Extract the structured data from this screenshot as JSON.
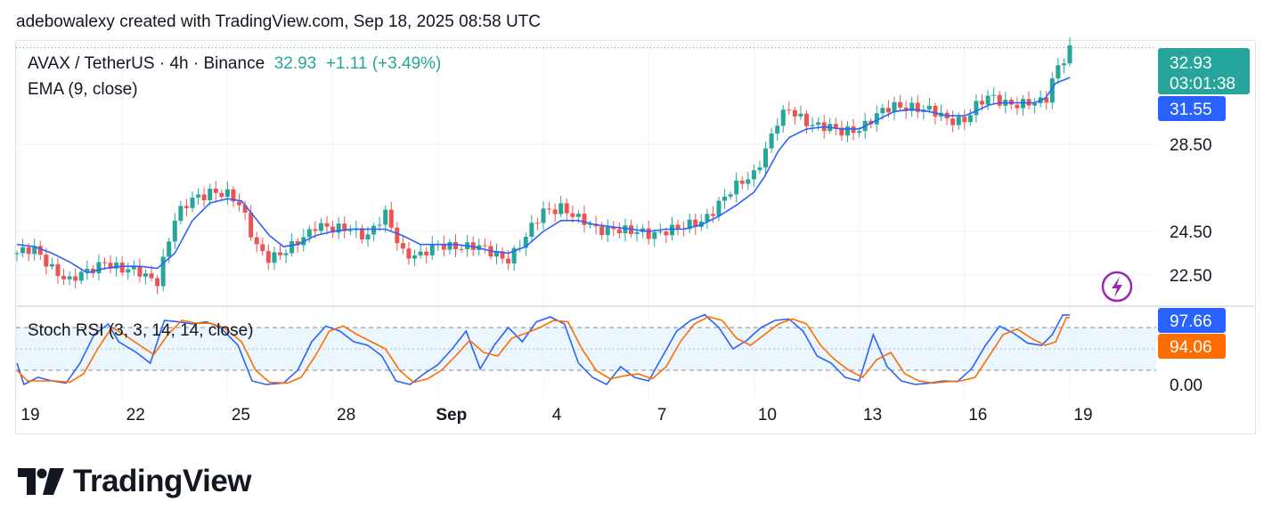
{
  "header": {
    "caption": "adebowalexy created with TradingView.com, Sep 18, 2025 08:58 UTC"
  },
  "legend": {
    "symbol": "AVAX / TetherUS · 4h · Binance",
    "price": "32.93",
    "change": "+1.11 (+3.49%)",
    "ema_label": "EMA (9, close)",
    "stoch_label": "Stoch RSI (3, 3, 14, 14, close)"
  },
  "badges": {
    "last_price": "32.93",
    "countdown": "03:01:38",
    "ema_value": "31.55",
    "k_value": "97.66",
    "d_value": "94.06"
  },
  "brand": {
    "name": "TradingView"
  },
  "colors": {
    "up": "#26a69a",
    "down": "#ef5350",
    "ema": "#2962ff",
    "stoch_k": "#2962ff",
    "stoch_d": "#ff6d00",
    "band": "#e3f2fd"
  },
  "chart_data": [
    {
      "type": "candlestick",
      "title": "AVAX / TetherUS · 4h · Binance",
      "y_ticks": [
        "28.50",
        "24.50",
        "22.50"
      ],
      "y_tick_values": [
        28.5,
        24.5,
        22.5
      ],
      "x_ticks": [
        "19",
        "22",
        "25",
        "28",
        "Sep",
        "4",
        "7",
        "10",
        "13",
        "16",
        "19"
      ],
      "x_tick_day_index": [
        0,
        3,
        6,
        9,
        12,
        15,
        18,
        21,
        24,
        27,
        30
      ],
      "close_path": [
        [
          0,
          23.5
        ],
        [
          0.5,
          23.6
        ],
        [
          1.0,
          22.9
        ],
        [
          1.5,
          22.2
        ],
        [
          2.0,
          22.6
        ],
        [
          2.5,
          23.2
        ],
        [
          3.0,
          22.7
        ],
        [
          3.5,
          22.6
        ],
        [
          4.0,
          22.3
        ],
        [
          4.5,
          25.0
        ],
        [
          5.0,
          26.0
        ],
        [
          5.5,
          26.4
        ],
        [
          6.0,
          26.1
        ],
        [
          6.4,
          25.6
        ],
        [
          6.8,
          24.0
        ],
        [
          7.2,
          23.2
        ],
        [
          7.6,
          23.4
        ],
        [
          8.0,
          24.1
        ],
        [
          8.5,
          24.8
        ],
        [
          9.0,
          24.5
        ],
        [
          9.5,
          24.7
        ],
        [
          10.0,
          24.3
        ],
        [
          10.5,
          25.2
        ],
        [
          11.0,
          23.6
        ],
        [
          11.5,
          23.4
        ],
        [
          12.0,
          23.8
        ],
        [
          12.5,
          23.9
        ],
        [
          13.0,
          23.8
        ],
        [
          13.5,
          23.5
        ],
        [
          14.0,
          23.3
        ],
        [
          14.5,
          24.2
        ],
        [
          15.0,
          25.4
        ],
        [
          15.5,
          25.7
        ],
        [
          16.0,
          25.0
        ],
        [
          16.5,
          24.6
        ],
        [
          17.0,
          24.7
        ],
        [
          17.5,
          24.4
        ],
        [
          18.0,
          24.4
        ],
        [
          18.5,
          24.6
        ],
        [
          19.0,
          24.6
        ],
        [
          19.5,
          25.0
        ],
        [
          20.0,
          25.8
        ],
        [
          20.5,
          26.5
        ],
        [
          21.0,
          27.2
        ],
        [
          21.3,
          28.2
        ],
        [
          21.7,
          29.6
        ],
        [
          22.0,
          30.0
        ],
        [
          22.5,
          29.6
        ],
        [
          23.0,
          29.3
        ],
        [
          23.5,
          29.0
        ],
        [
          24.0,
          29.3
        ],
        [
          24.5,
          29.8
        ],
        [
          25.0,
          30.2
        ],
        [
          25.5,
          30.3
        ],
        [
          26.0,
          30.0
        ],
        [
          26.5,
          29.6
        ],
        [
          27.0,
          29.7
        ],
        [
          27.3,
          30.2
        ],
        [
          27.7,
          30.6
        ],
        [
          28.0,
          30.5
        ],
        [
          28.5,
          30.4
        ],
        [
          29.0,
          30.3
        ],
        [
          29.3,
          30.4
        ],
        [
          29.6,
          32.0
        ],
        [
          30.0,
          32.9
        ]
      ],
      "ema_path": [
        [
          0,
          23.9
        ],
        [
          0.5,
          23.8
        ],
        [
          1.0,
          23.5
        ],
        [
          1.5,
          23.1
        ],
        [
          2.0,
          22.6
        ],
        [
          2.5,
          22.8
        ],
        [
          3.0,
          22.9
        ],
        [
          3.5,
          22.9
        ],
        [
          4.0,
          22.8
        ],
        [
          4.5,
          23.5
        ],
        [
          5.0,
          25.0
        ],
        [
          5.5,
          25.8
        ],
        [
          6.0,
          26.0
        ],
        [
          6.4,
          25.9
        ],
        [
          6.8,
          25.1
        ],
        [
          7.2,
          24.3
        ],
        [
          7.6,
          23.8
        ],
        [
          8.0,
          23.9
        ],
        [
          8.5,
          24.3
        ],
        [
          9.0,
          24.5
        ],
        [
          9.5,
          24.6
        ],
        [
          10.0,
          24.6
        ],
        [
          10.5,
          24.6
        ],
        [
          11.0,
          24.3
        ],
        [
          11.5,
          23.9
        ],
        [
          12.0,
          23.9
        ],
        [
          12.5,
          23.9
        ],
        [
          13.0,
          23.8
        ],
        [
          13.5,
          23.6
        ],
        [
          14.0,
          23.5
        ],
        [
          14.5,
          23.8
        ],
        [
          15.0,
          24.5
        ],
        [
          15.5,
          25.0
        ],
        [
          16.0,
          25.0
        ],
        [
          16.5,
          24.8
        ],
        [
          17.0,
          24.7
        ],
        [
          17.5,
          24.6
        ],
        [
          18.0,
          24.5
        ],
        [
          18.5,
          24.6
        ],
        [
          19.0,
          24.6
        ],
        [
          19.5,
          24.8
        ],
        [
          20.0,
          25.2
        ],
        [
          20.5,
          25.7
        ],
        [
          21.0,
          26.3
        ],
        [
          21.3,
          27.0
        ],
        [
          21.7,
          28.2
        ],
        [
          22.0,
          28.8
        ],
        [
          22.5,
          29.2
        ],
        [
          23.0,
          29.3
        ],
        [
          23.5,
          29.2
        ],
        [
          24.0,
          29.2
        ],
        [
          24.5,
          29.6
        ],
        [
          25.0,
          30.0
        ],
        [
          25.5,
          30.1
        ],
        [
          26.0,
          30.0
        ],
        [
          26.5,
          29.8
        ],
        [
          27.0,
          29.8
        ],
        [
          27.3,
          30.0
        ],
        [
          27.7,
          30.3
        ],
        [
          28.0,
          30.4
        ],
        [
          28.5,
          30.4
        ],
        [
          29.0,
          30.4
        ],
        [
          29.3,
          30.6
        ],
        [
          29.6,
          31.3
        ],
        [
          30.0,
          31.55
        ]
      ],
      "last_price": 32.93,
      "ema_last": 31.55
    },
    {
      "type": "line",
      "title": "Stoch RSI (3, 3, 14, 14, close)",
      "y_ticks": [
        "0.00"
      ],
      "y_tick_values": [
        0
      ],
      "bands": [
        20,
        50,
        80
      ],
      "series": [
        {
          "name": "K",
          "points": [
            [
              0,
              30
            ],
            [
              0.2,
              0
            ],
            [
              0.6,
              10
            ],
            [
              1.0,
              5
            ],
            [
              1.4,
              2
            ],
            [
              1.8,
              30
            ],
            [
              2.2,
              70
            ],
            [
              2.6,
              85
            ],
            [
              2.9,
              60
            ],
            [
              3.4,
              45
            ],
            [
              3.8,
              30
            ],
            [
              4.2,
              90
            ],
            [
              4.6,
              88
            ],
            [
              5.0,
              85
            ],
            [
              5.4,
              88
            ],
            [
              5.8,
              80
            ],
            [
              6.3,
              55
            ],
            [
              6.7,
              5
            ],
            [
              7.1,
              0
            ],
            [
              7.6,
              2
            ],
            [
              8.0,
              20
            ],
            [
              8.4,
              60
            ],
            [
              8.8,
              82
            ],
            [
              9.2,
              75
            ],
            [
              9.6,
              60
            ],
            [
              10.0,
              55
            ],
            [
              10.4,
              40
            ],
            [
              10.8,
              5
            ],
            [
              11.2,
              0
            ],
            [
              11.6,
              15
            ],
            [
              12.0,
              28
            ],
            [
              12.4,
              50
            ],
            [
              12.8,
              75
            ],
            [
              13.2,
              22
            ],
            [
              13.6,
              55
            ],
            [
              14.0,
              80
            ],
            [
              14.4,
              60
            ],
            [
              14.8,
              88
            ],
            [
              15.2,
              95
            ],
            [
              15.6,
              85
            ],
            [
              16.0,
              30
            ],
            [
              16.4,
              10
            ],
            [
              16.8,
              0
            ],
            [
              17.2,
              25
            ],
            [
              17.6,
              10
            ],
            [
              18.0,
              5
            ],
            [
              18.4,
              40
            ],
            [
              18.8,
              75
            ],
            [
              19.2,
              90
            ],
            [
              19.6,
              98
            ],
            [
              20.0,
              80
            ],
            [
              20.4,
              50
            ],
            [
              20.8,
              62
            ],
            [
              21.2,
              80
            ],
            [
              21.6,
              90
            ],
            [
              22.0,
              92
            ],
            [
              22.4,
              75
            ],
            [
              22.8,
              40
            ],
            [
              23.2,
              30
            ],
            [
              23.6,
              10
            ],
            [
              24.0,
              5
            ],
            [
              24.4,
              70
            ],
            [
              24.8,
              25
            ],
            [
              25.2,
              5
            ],
            [
              25.6,
              0
            ],
            [
              26.0,
              2
            ],
            [
              26.4,
              5
            ],
            [
              26.8,
              4
            ],
            [
              27.2,
              22
            ],
            [
              27.6,
              55
            ],
            [
              28.0,
              82
            ],
            [
              28.4,
              72
            ],
            [
              28.8,
              58
            ],
            [
              29.2,
              55
            ],
            [
              29.5,
              70
            ],
            [
              29.8,
              97.66
            ],
            [
              30.0,
              97.66
            ]
          ]
        },
        {
          "name": "D",
          "points": [
            [
              0,
              20
            ],
            [
              0.3,
              5
            ],
            [
              0.7,
              5
            ],
            [
              1.1,
              5
            ],
            [
              1.5,
              3
            ],
            [
              1.9,
              15
            ],
            [
              2.3,
              50
            ],
            [
              2.7,
              80
            ],
            [
              3.0,
              72
            ],
            [
              3.5,
              55
            ],
            [
              3.9,
              42
            ],
            [
              4.3,
              70
            ],
            [
              4.7,
              90
            ],
            [
              5.1,
              86
            ],
            [
              5.5,
              86
            ],
            [
              5.9,
              80
            ],
            [
              6.4,
              60
            ],
            [
              6.8,
              20
            ],
            [
              7.2,
              3
            ],
            [
              7.7,
              2
            ],
            [
              8.1,
              10
            ],
            [
              8.5,
              40
            ],
            [
              8.9,
              75
            ],
            [
              9.3,
              82
            ],
            [
              9.7,
              70
            ],
            [
              10.1,
              60
            ],
            [
              10.5,
              50
            ],
            [
              10.9,
              20
            ],
            [
              11.3,
              3
            ],
            [
              11.7,
              8
            ],
            [
              12.1,
              20
            ],
            [
              12.5,
              40
            ],
            [
              12.9,
              62
            ],
            [
              13.3,
              45
            ],
            [
              13.7,
              40
            ],
            [
              14.1,
              65
            ],
            [
              14.5,
              72
            ],
            [
              14.9,
              80
            ],
            [
              15.3,
              90
            ],
            [
              15.7,
              88
            ],
            [
              16.1,
              50
            ],
            [
              16.5,
              20
            ],
            [
              16.9,
              8
            ],
            [
              17.3,
              12
            ],
            [
              17.7,
              15
            ],
            [
              18.1,
              8
            ],
            [
              18.5,
              25
            ],
            [
              18.9,
              60
            ],
            [
              19.3,
              85
            ],
            [
              19.7,
              95
            ],
            [
              20.1,
              90
            ],
            [
              20.5,
              65
            ],
            [
              20.9,
              55
            ],
            [
              21.3,
              70
            ],
            [
              21.7,
              85
            ],
            [
              22.1,
              92
            ],
            [
              22.5,
              85
            ],
            [
              22.9,
              55
            ],
            [
              23.3,
              35
            ],
            [
              23.7,
              20
            ],
            [
              24.1,
              10
            ],
            [
              24.5,
              35
            ],
            [
              24.9,
              45
            ],
            [
              25.3,
              15
            ],
            [
              25.7,
              5
            ],
            [
              26.1,
              2
            ],
            [
              26.5,
              4
            ],
            [
              26.9,
              5
            ],
            [
              27.3,
              10
            ],
            [
              27.7,
              40
            ],
            [
              28.1,
              70
            ],
            [
              28.5,
              78
            ],
            [
              28.9,
              65
            ],
            [
              29.3,
              55
            ],
            [
              29.6,
              60
            ],
            [
              29.9,
              94.06
            ],
            [
              30.0,
              94.06
            ]
          ]
        }
      ],
      "k_last": 97.66,
      "d_last": 94.06
    }
  ]
}
